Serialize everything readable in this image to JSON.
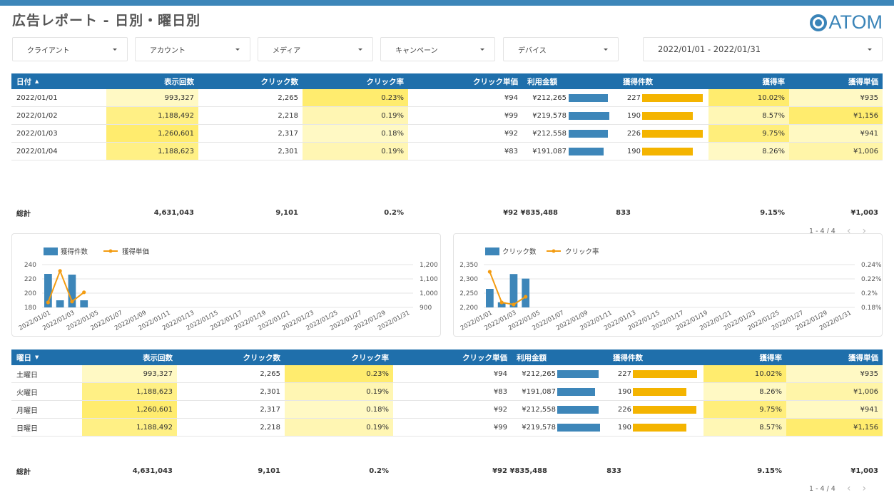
{
  "header": {
    "title": "広告レポート - 日別・曜日別",
    "logo_text": "ATOM",
    "accent": "#3d86b9"
  },
  "filters": [
    {
      "label": "クライアント",
      "icon": "chevron-down-icon"
    },
    {
      "label": "アカウント",
      "icon": "chevron-down-icon"
    },
    {
      "label": "メディア",
      "icon": "chevron-down-icon"
    },
    {
      "label": "キャンペーン",
      "icon": "chevron-down-icon"
    },
    {
      "label": "デバイス",
      "icon": "chevron-down-icon"
    }
  ],
  "date_range": "2022/01/01 - 2022/01/31",
  "daily_table": {
    "headers": [
      "日付",
      "表示回数",
      "クリック数",
      "クリック率",
      "クリック単価",
      "利用金額",
      "獲得件数",
      "獲得率",
      "獲得単価"
    ],
    "sort_indicator": "▲",
    "rows": [
      {
        "key": "2022/01/01",
        "imp": "993,327",
        "clicks": "2,265",
        "ctr": "0.23%",
        "cpc": "¥94",
        "cost": "¥212,265",
        "cost_val": 212265,
        "conv": "227",
        "conv_val": 227,
        "cvr": "10.02%",
        "cpa": "¥935"
      },
      {
        "key": "2022/01/02",
        "imp": "1,188,492",
        "clicks": "2,218",
        "ctr": "0.19%",
        "cpc": "¥99",
        "cost": "¥219,578",
        "cost_val": 219578,
        "conv": "190",
        "conv_val": 190,
        "cvr": "8.57%",
        "cpa": "¥1,156"
      },
      {
        "key": "2022/01/03",
        "imp": "1,260,601",
        "clicks": "2,317",
        "ctr": "0.18%",
        "cpc": "¥92",
        "cost": "¥212,558",
        "cost_val": 212558,
        "conv": "226",
        "conv_val": 226,
        "cvr": "9.75%",
        "cpa": "¥941"
      },
      {
        "key": "2022/01/04",
        "imp": "1,188,623",
        "clicks": "2,301",
        "ctr": "0.19%",
        "cpc": "¥83",
        "cost": "¥191,087",
        "cost_val": 191087,
        "conv": "190",
        "conv_val": 190,
        "cvr": "8.26%",
        "cpa": "¥1,006"
      }
    ],
    "total": {
      "label": "総計",
      "imp": "4,631,043",
      "clicks": "9,101",
      "ctr": "0.2%",
      "cpc": "¥92",
      "cost": "¥835,488",
      "conv": "833",
      "cvr": "9.15%",
      "cpa": "¥1,003"
    },
    "pager": "1 - 4 / 4"
  },
  "weekday_table": {
    "headers": [
      "曜日",
      "表示回数",
      "クリック数",
      "クリック率",
      "クリック単価",
      "利用金額",
      "獲得件数",
      "獲得率",
      "獲得単価"
    ],
    "sort_indicator": "▼",
    "rows": [
      {
        "key": "土曜日",
        "imp": "993,327",
        "clicks": "2,265",
        "ctr": "0.23%",
        "cpc": "¥94",
        "cost": "¥212,265",
        "cost_val": 212265,
        "conv": "227",
        "conv_val": 227,
        "cvr": "10.02%",
        "cpa": "¥935"
      },
      {
        "key": "火曜日",
        "imp": "1,188,623",
        "clicks": "2,301",
        "ctr": "0.19%",
        "cpc": "¥83",
        "cost": "¥191,087",
        "cost_val": 191087,
        "conv": "190",
        "conv_val": 190,
        "cvr": "8.26%",
        "cpa": "¥1,006"
      },
      {
        "key": "月曜日",
        "imp": "1,260,601",
        "clicks": "2,317",
        "ctr": "0.18%",
        "cpc": "¥92",
        "cost": "¥212,558",
        "cost_val": 212558,
        "conv": "226",
        "conv_val": 226,
        "cvr": "9.75%",
        "cpa": "¥941"
      },
      {
        "key": "日曜日",
        "imp": "1,188,492",
        "clicks": "2,218",
        "ctr": "0.19%",
        "cpc": "¥99",
        "cost": "¥219,578",
        "cost_val": 219578,
        "conv": "190",
        "conv_val": 190,
        "cvr": "8.57%",
        "cpa": "¥1,156"
      }
    ],
    "total": {
      "label": "総計",
      "imp": "4,631,043",
      "clicks": "9,101",
      "ctr": "0.2%",
      "cpc": "¥92",
      "cost": "¥835,488",
      "conv": "833",
      "cvr": "9.15%",
      "cpa": "¥1,003"
    },
    "pager": "1 - 4 / 4"
  },
  "colors": {
    "header_bg": "#1f6fab",
    "bar_blue": "#3d86b9",
    "bar_gold": "#f4b400",
    "line_orange": "#f39c12",
    "heat_light": "#fff59d",
    "heat_mid": "#fff176",
    "heat_pale": "#fff9c4"
  },
  "chart_data": [
    {
      "type": "bar",
      "legend": [
        "獲得件数",
        "獲得単価"
      ],
      "x_ticks": [
        "2022/01/01",
        "2022/01/03",
        "2022/01/05",
        "2022/01/07",
        "2022/01/09",
        "2022/01/11",
        "2022/01/13",
        "2022/01/15",
        "2022/01/17",
        "2022/01/19",
        "2022/01/21",
        "2022/01/23",
        "2022/01/25",
        "2022/01/27",
        "2022/01/29",
        "2022/01/31"
      ],
      "x": [
        "2022/01/01",
        "2022/01/02",
        "2022/01/03",
        "2022/01/04"
      ],
      "series": [
        {
          "name": "獲得件数",
          "kind": "bar",
          "axis": "left",
          "values": [
            227,
            190,
            226,
            190
          ]
        },
        {
          "name": "獲得単価",
          "kind": "line",
          "axis": "right",
          "values": [
            935,
            1156,
            941,
            1006
          ]
        }
      ],
      "y_left_ticks": [
        "180",
        "200",
        "220",
        "240"
      ],
      "y_left_range": [
        180,
        240
      ],
      "y_right_ticks": [
        "900",
        "1,000",
        "1,100",
        "1,200"
      ],
      "y_right_range": [
        900,
        1200
      ],
      "grid": true,
      "legend_position": "top-left"
    },
    {
      "type": "bar",
      "legend": [
        "クリック数",
        "クリック率"
      ],
      "x_ticks": [
        "2022/01/01",
        "2022/01/03",
        "2022/01/05",
        "2022/01/07",
        "2022/01/09",
        "2022/01/11",
        "2022/01/13",
        "2022/01/15",
        "2022/01/17",
        "2022/01/19",
        "2022/01/21",
        "2022/01/23",
        "2022/01/25",
        "2022/01/27",
        "2022/01/29",
        "2022/01/31"
      ],
      "x": [
        "2022/01/01",
        "2022/01/02",
        "2022/01/03",
        "2022/01/04"
      ],
      "series": [
        {
          "name": "クリック数",
          "kind": "bar",
          "axis": "left",
          "values": [
            2265,
            2218,
            2317,
            2301
          ]
        },
        {
          "name": "クリック率",
          "kind": "line",
          "axis": "right",
          "values": [
            0.23,
            0.187,
            0.184,
            0.195
          ]
        }
      ],
      "y_left_ticks": [
        "2,200",
        "2,250",
        "2,300",
        "2,350"
      ],
      "y_left_range": [
        2200,
        2350
      ],
      "y_right_ticks": [
        "0.18%",
        "0.2%",
        "0.22%",
        "0.24%"
      ],
      "y_right_range": [
        0.18,
        0.24
      ],
      "grid": true,
      "legend_position": "top-left"
    }
  ]
}
